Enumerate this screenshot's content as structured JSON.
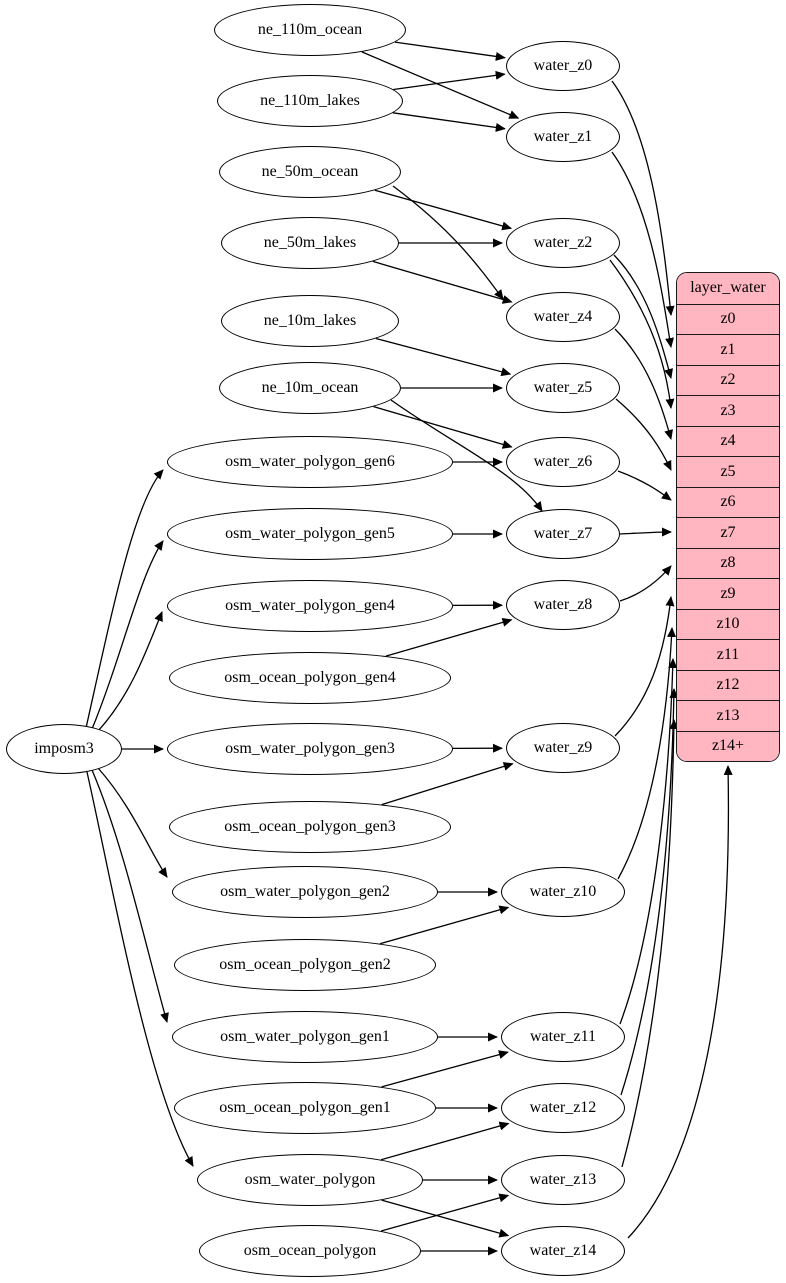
{
  "colors": {
    "record_fill": "#FFB6C1",
    "node_fill": "#FFFFFF",
    "stroke": "#000000"
  },
  "graph": {
    "nodes": [
      {
        "id": "imposm3",
        "label": "imposm3"
      },
      {
        "id": "ne_110m_ocean",
        "label": "ne_110m_ocean"
      },
      {
        "id": "ne_110m_lakes",
        "label": "ne_110m_lakes"
      },
      {
        "id": "ne_50m_ocean",
        "label": "ne_50m_ocean"
      },
      {
        "id": "ne_50m_lakes",
        "label": "ne_50m_lakes"
      },
      {
        "id": "ne_10m_lakes",
        "label": "ne_10m_lakes"
      },
      {
        "id": "ne_10m_ocean",
        "label": "ne_10m_ocean"
      },
      {
        "id": "osm_water_polygon_gen6",
        "label": "osm_water_polygon_gen6"
      },
      {
        "id": "osm_water_polygon_gen5",
        "label": "osm_water_polygon_gen5"
      },
      {
        "id": "osm_water_polygon_gen4",
        "label": "osm_water_polygon_gen4"
      },
      {
        "id": "osm_ocean_polygon_gen4",
        "label": "osm_ocean_polygon_gen4"
      },
      {
        "id": "osm_water_polygon_gen3",
        "label": "osm_water_polygon_gen3"
      },
      {
        "id": "osm_ocean_polygon_gen3",
        "label": "osm_ocean_polygon_gen3"
      },
      {
        "id": "osm_water_polygon_gen2",
        "label": "osm_water_polygon_gen2"
      },
      {
        "id": "osm_ocean_polygon_gen2",
        "label": "osm_ocean_polygon_gen2"
      },
      {
        "id": "osm_water_polygon_gen1",
        "label": "osm_water_polygon_gen1"
      },
      {
        "id": "osm_ocean_polygon_gen1",
        "label": "osm_ocean_polygon_gen1"
      },
      {
        "id": "osm_water_polygon",
        "label": "osm_water_polygon"
      },
      {
        "id": "osm_ocean_polygon",
        "label": "osm_ocean_polygon"
      },
      {
        "id": "water_z0",
        "label": "water_z0"
      },
      {
        "id": "water_z1",
        "label": "water_z1"
      },
      {
        "id": "water_z2",
        "label": "water_z2"
      },
      {
        "id": "water_z4",
        "label": "water_z4"
      },
      {
        "id": "water_z5",
        "label": "water_z5"
      },
      {
        "id": "water_z6",
        "label": "water_z6"
      },
      {
        "id": "water_z7",
        "label": "water_z7"
      },
      {
        "id": "water_z8",
        "label": "water_z8"
      },
      {
        "id": "water_z9",
        "label": "water_z9"
      },
      {
        "id": "water_z10",
        "label": "water_z10"
      },
      {
        "id": "water_z11",
        "label": "water_z11"
      },
      {
        "id": "water_z12",
        "label": "water_z12"
      },
      {
        "id": "water_z13",
        "label": "water_z13"
      },
      {
        "id": "water_z14",
        "label": "water_z14"
      }
    ],
    "record": {
      "id": "layer_water",
      "header": "layer_water",
      "rows": [
        "z0",
        "z1",
        "z2",
        "z3",
        "z4",
        "z5",
        "z6",
        "z7",
        "z8",
        "z9",
        "z10",
        "z11",
        "z12",
        "z13",
        "z14+"
      ]
    },
    "edges": [
      [
        "ne_110m_ocean",
        "water_z0"
      ],
      [
        "ne_110m_ocean",
        "water_z1"
      ],
      [
        "ne_110m_lakes",
        "water_z0"
      ],
      [
        "ne_110m_lakes",
        "water_z1"
      ],
      [
        "ne_50m_ocean",
        "water_z2"
      ],
      [
        "ne_50m_ocean",
        "water_z4"
      ],
      [
        "ne_50m_lakes",
        "water_z2"
      ],
      [
        "ne_50m_lakes",
        "water_z4"
      ],
      [
        "ne_10m_lakes",
        "water_z5"
      ],
      [
        "ne_10m_ocean",
        "water_z5"
      ],
      [
        "ne_10m_ocean",
        "water_z6"
      ],
      [
        "ne_10m_ocean",
        "water_z7"
      ],
      [
        "imposm3",
        "osm_water_polygon_gen6"
      ],
      [
        "imposm3",
        "osm_water_polygon_gen5"
      ],
      [
        "imposm3",
        "osm_water_polygon_gen4"
      ],
      [
        "imposm3",
        "osm_water_polygon_gen3"
      ],
      [
        "imposm3",
        "osm_water_polygon_gen2"
      ],
      [
        "imposm3",
        "osm_water_polygon_gen1"
      ],
      [
        "imposm3",
        "osm_water_polygon"
      ],
      [
        "osm_water_polygon_gen6",
        "water_z6"
      ],
      [
        "osm_water_polygon_gen5",
        "water_z7"
      ],
      [
        "osm_water_polygon_gen4",
        "water_z8"
      ],
      [
        "osm_ocean_polygon_gen4",
        "water_z8"
      ],
      [
        "osm_water_polygon_gen3",
        "water_z9"
      ],
      [
        "osm_ocean_polygon_gen3",
        "water_z9"
      ],
      [
        "osm_water_polygon_gen2",
        "water_z10"
      ],
      [
        "osm_ocean_polygon_gen2",
        "water_z10"
      ],
      [
        "osm_water_polygon_gen1",
        "water_z11"
      ],
      [
        "osm_ocean_polygon_gen1",
        "water_z11"
      ],
      [
        "osm_ocean_polygon_gen1",
        "water_z12"
      ],
      [
        "osm_water_polygon",
        "water_z12"
      ],
      [
        "osm_water_polygon",
        "water_z13"
      ],
      [
        "osm_water_polygon",
        "water_z14"
      ],
      [
        "osm_ocean_polygon",
        "water_z13"
      ],
      [
        "osm_ocean_polygon",
        "water_z14"
      ],
      [
        "water_z0",
        "layer_water.z0"
      ],
      [
        "water_z1",
        "layer_water.z1"
      ],
      [
        "water_z2",
        "layer_water.z2"
      ],
      [
        "water_z2",
        "layer_water.z3"
      ],
      [
        "water_z4",
        "layer_water.z4"
      ],
      [
        "water_z5",
        "layer_water.z5"
      ],
      [
        "water_z6",
        "layer_water.z6"
      ],
      [
        "water_z7",
        "layer_water.z7"
      ],
      [
        "water_z8",
        "layer_water.z8"
      ],
      [
        "water_z9",
        "layer_water.z9"
      ],
      [
        "water_z10",
        "layer_water.z10"
      ],
      [
        "water_z11",
        "layer_water.z11"
      ],
      [
        "water_z12",
        "layer_water.z12"
      ],
      [
        "water_z13",
        "layer_water.z13"
      ],
      [
        "water_z14",
        "layer_water.z14+"
      ]
    ]
  }
}
